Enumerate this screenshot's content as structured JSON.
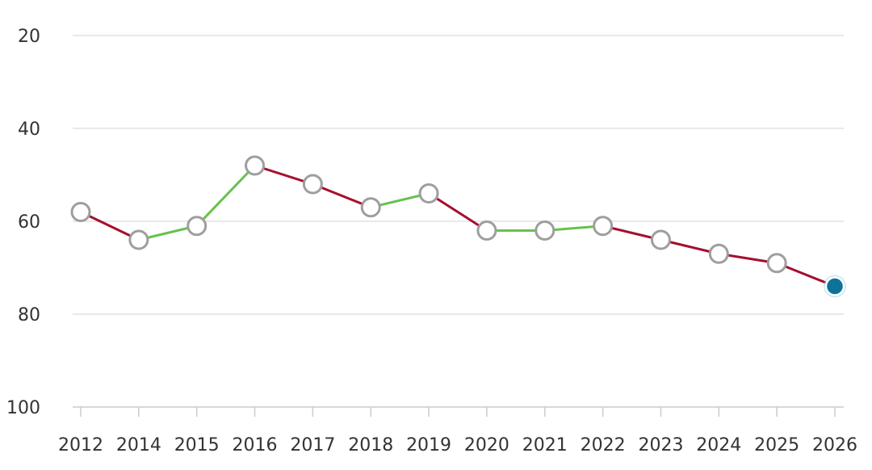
{
  "chart_data": {
    "type": "line",
    "title": "",
    "xlabel": "",
    "ylabel": "",
    "y_reversed": true,
    "ylim": [
      20,
      100
    ],
    "yticks": [
      20,
      40,
      60,
      80,
      100
    ],
    "grid": true,
    "categories": [
      "2012",
      "2014",
      "2015",
      "2016",
      "2017",
      "2018",
      "2019",
      "2020",
      "2021",
      "2022",
      "2023",
      "2024",
      "2025",
      "2026"
    ],
    "series": [
      {
        "values": [
          58,
          64,
          61,
          48,
          52,
          57,
          54,
          62,
          62,
          61,
          64,
          67,
          69,
          74
        ]
      }
    ],
    "colors": {
      "worse": "#a50f2d",
      "better": "#66c24d",
      "marker_fill": "#ffffff",
      "marker_stroke": "#9e9e9e",
      "highlight_fill": "#0f7399",
      "highlight_glow": "#8fd0e8"
    }
  }
}
